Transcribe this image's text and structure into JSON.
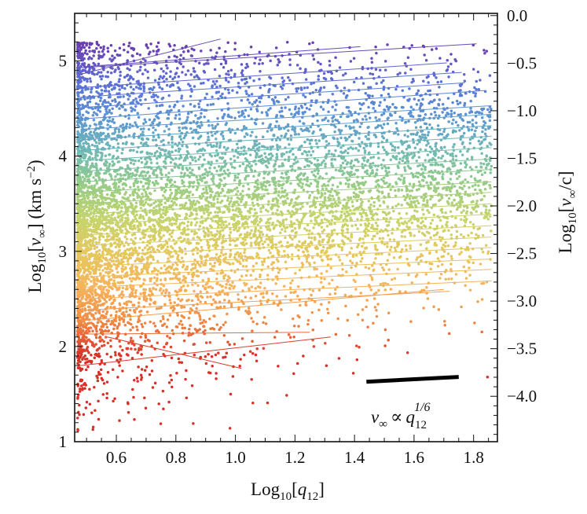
{
  "chart_data": {
    "type": "scatter",
    "xlabel": {
      "base": "Log",
      "base_sub": "10",
      "var": "q",
      "var_sub": "12"
    },
    "ylabel_left": {
      "base": "Log",
      "base_sub": "10",
      "var": "v",
      "var_sub": "∞",
      "units": "(km s",
      "units_sup": "−2",
      "units_close": ")"
    },
    "ylabel_right": {
      "base": "Log",
      "base_sub": "10",
      "var": "v",
      "var_sub": "∞",
      "tail": "/c]"
    },
    "xlim": [
      0.46,
      1.88
    ],
    "ylim": [
      1.0,
      5.5
    ],
    "xticks": [
      0.6,
      0.8,
      1.0,
      1.2,
      1.4,
      1.6,
      1.8
    ],
    "xtick_labels": [
      "0.6",
      "0.8",
      "1.0",
      "1.2",
      "1.4",
      "1.6",
      "1.8"
    ],
    "yticks_left": [
      1,
      2,
      3,
      4,
      5
    ],
    "ytick_labels_left": [
      "1",
      "2",
      "3",
      "4",
      "5"
    ],
    "yticks_right": [
      0.0,
      -0.5,
      -1.0,
      -1.5,
      -2.0,
      -2.5,
      -3.0,
      -3.5,
      -4.0
    ],
    "ytick_labels_right": [
      "0.0",
      "−0.5",
      "−1.0",
      "−1.5",
      "−2.0",
      "−2.5",
      "−3.0",
      "−3.5",
      "−4.0"
    ],
    "right_axis_offset": -5.477,
    "colormap": [
      "#d73027",
      "#f08a43",
      "#f5b45c",
      "#e5c85e",
      "#c6d46c",
      "#96cc86",
      "#6fb9b5",
      "#5c93d3",
      "#5b6fd4",
      "#6a3fb0"
    ],
    "fit_lines": [
      {
        "x": [
          0.48,
          0.95
        ],
        "y": [
          4.86,
          5.23
        ]
      },
      {
        "x": [
          0.49,
          1.42
        ],
        "y": [
          4.94,
          5.15
        ]
      },
      {
        "x": [
          0.48,
          1.81
        ],
        "y": [
          4.93,
          5.18
        ]
      },
      {
        "x": [
          0.48,
          1.71
        ],
        "y": [
          4.72,
          4.98
        ]
      },
      {
        "x": [
          0.48,
          1.76
        ],
        "y": [
          4.62,
          4.88
        ]
      },
      {
        "x": [
          0.48,
          1.77
        ],
        "y": [
          4.51,
          4.77
        ]
      },
      {
        "x": [
          0.48,
          1.84
        ],
        "y": [
          4.39,
          4.69
        ]
      },
      {
        "x": [
          0.48,
          1.86
        ],
        "y": [
          4.28,
          4.53
        ]
      },
      {
        "x": [
          0.48,
          1.86
        ],
        "y": [
          4.17,
          4.44
        ]
      },
      {
        "x": [
          0.48,
          1.86
        ],
        "y": [
          4.06,
          4.32
        ]
      },
      {
        "x": [
          0.48,
          1.86
        ],
        "y": [
          3.95,
          4.21
        ]
      },
      {
        "x": [
          0.48,
          1.86
        ],
        "y": [
          3.84,
          4.09
        ]
      },
      {
        "x": [
          0.48,
          1.86
        ],
        "y": [
          3.73,
          3.97
        ]
      },
      {
        "x": [
          0.48,
          1.86
        ],
        "y": [
          3.62,
          3.86
        ]
      },
      {
        "x": [
          0.48,
          1.86
        ],
        "y": [
          3.5,
          3.73
        ]
      },
      {
        "x": [
          0.48,
          1.86
        ],
        "y": [
          3.39,
          3.62
        ]
      },
      {
        "x": [
          0.48,
          1.86
        ],
        "y": [
          3.28,
          3.5
        ]
      },
      {
        "x": [
          0.48,
          1.86
        ],
        "y": [
          3.17,
          3.39
        ]
      },
      {
        "x": [
          0.48,
          1.86
        ],
        "y": [
          3.06,
          3.27
        ]
      },
      {
        "x": [
          0.48,
          1.86
        ],
        "y": [
          2.95,
          3.15
        ]
      },
      {
        "x": [
          0.48,
          1.86
        ],
        "y": [
          2.84,
          3.04
        ]
      },
      {
        "x": [
          0.48,
          1.86
        ],
        "y": [
          2.73,
          2.92
        ]
      },
      {
        "x": [
          0.48,
          1.86
        ],
        "y": [
          2.62,
          2.81
        ]
      },
      {
        "x": [
          0.48,
          1.86
        ],
        "y": [
          2.5,
          2.69
        ]
      },
      {
        "x": [
          0.48,
          1.72
        ],
        "y": [
          2.38,
          2.58
        ]
      },
      {
        "x": [
          0.48,
          1.7
        ],
        "y": [
          2.27,
          2.6
        ]
      },
      {
        "x": [
          0.48,
          1.25
        ],
        "y": [
          2.13,
          2.15
        ]
      },
      {
        "x": [
          0.48,
          1.32
        ],
        "y": [
          1.8,
          2.1
        ]
      },
      {
        "x": [
          0.57,
          1.02
        ],
        "y": [
          2.1,
          1.77
        ]
      }
    ],
    "slope_bar": {
      "x": [
        1.44,
        1.75
      ],
      "y": [
        1.63,
        1.68
      ]
    },
    "annotation": {
      "lhs": "v",
      "lhs_sub": "∞",
      "op": "∝",
      "rhs": "q",
      "rhs_sub": "12",
      "rhs_sup": "1/6"
    },
    "scatter": {
      "n_points": 8000,
      "x_range": [
        0.47,
        1.86
      ],
      "y_range": [
        1.1,
        5.25
      ],
      "density_note": "dense at low x and y 2-3.5, spreading upward; colour varies with y"
    }
  }
}
